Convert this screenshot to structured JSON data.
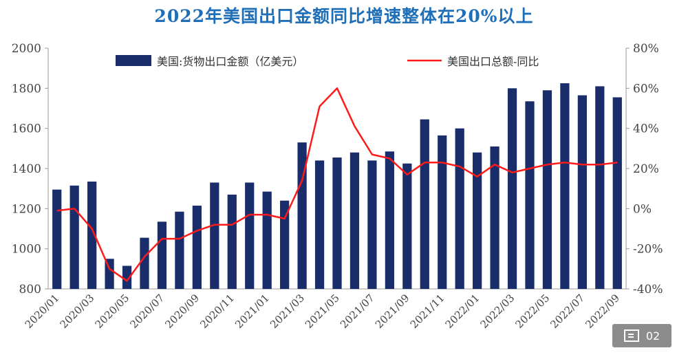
{
  "title": "2022年美国出口金额同比增速整体在20%以上",
  "badge": {
    "label": "02"
  },
  "chart_data": {
    "type": "bar+line",
    "title": "2022年美国出口金额同比增速整体在20%以上",
    "categories": [
      "2020/01",
      "2020/02",
      "2020/03",
      "2020/04",
      "2020/05",
      "2020/06",
      "2020/07",
      "2020/08",
      "2020/09",
      "2020/10",
      "2020/11",
      "2020/12",
      "2021/01",
      "2021/02",
      "2021/03",
      "2021/04",
      "2021/05",
      "2021/06",
      "2021/07",
      "2021/08",
      "2021/09",
      "2021/10",
      "2021/11",
      "2021/12",
      "2022/01",
      "2022/02",
      "2022/03",
      "2022/04",
      "2022/05",
      "2022/06",
      "2022/07",
      "2022/08",
      "2022/09"
    ],
    "x_tick_labels": [
      "2020/01",
      "2020/03",
      "2020/05",
      "2020/07",
      "2020/09",
      "2020/11",
      "2021/01",
      "2021/03",
      "2021/05",
      "2021/07",
      "2021/09",
      "2021/11",
      "2022/01",
      "2022/03",
      "2022/05",
      "2022/07",
      "2022/09"
    ],
    "series": [
      {
        "name": "美国:货物出口金额（亿美元）",
        "type": "bar",
        "axis": "left",
        "color": "#1a2d6b",
        "values": [
          1295,
          1315,
          1335,
          950,
          915,
          1055,
          1135,
          1185,
          1215,
          1330,
          1270,
          1330,
          1285,
          1240,
          1530,
          1440,
          1455,
          1480,
          1440,
          1485,
          1425,
          1645,
          1565,
          1600,
          1480,
          1510,
          1800,
          1735,
          1790,
          1825,
          1765,
          1810,
          1755
        ]
      },
      {
        "name": "美国出口总额-同比",
        "type": "line",
        "axis": "right",
        "color": "#ff1a1a",
        "values": [
          -1,
          0,
          -10,
          -30,
          -36,
          -24,
          -15,
          -15,
          -11,
          -8,
          -8,
          -3,
          -3,
          -5,
          14,
          51,
          60,
          41,
          27,
          25,
          17,
          23,
          23,
          21,
          16,
          22,
          18,
          20,
          22,
          23,
          22,
          22,
          23
        ]
      }
    ],
    "y_left": {
      "min": 800,
      "max": 2000,
      "ticks": [
        800,
        1000,
        1200,
        1400,
        1600,
        1800,
        2000
      ]
    },
    "y_right": {
      "min": -40,
      "max": 80,
      "ticks": [
        "-40%",
        "-20%",
        "0%",
        "20%",
        "40%",
        "60%",
        "80%"
      ]
    },
    "legend_placement": "top",
    "grid": false
  }
}
